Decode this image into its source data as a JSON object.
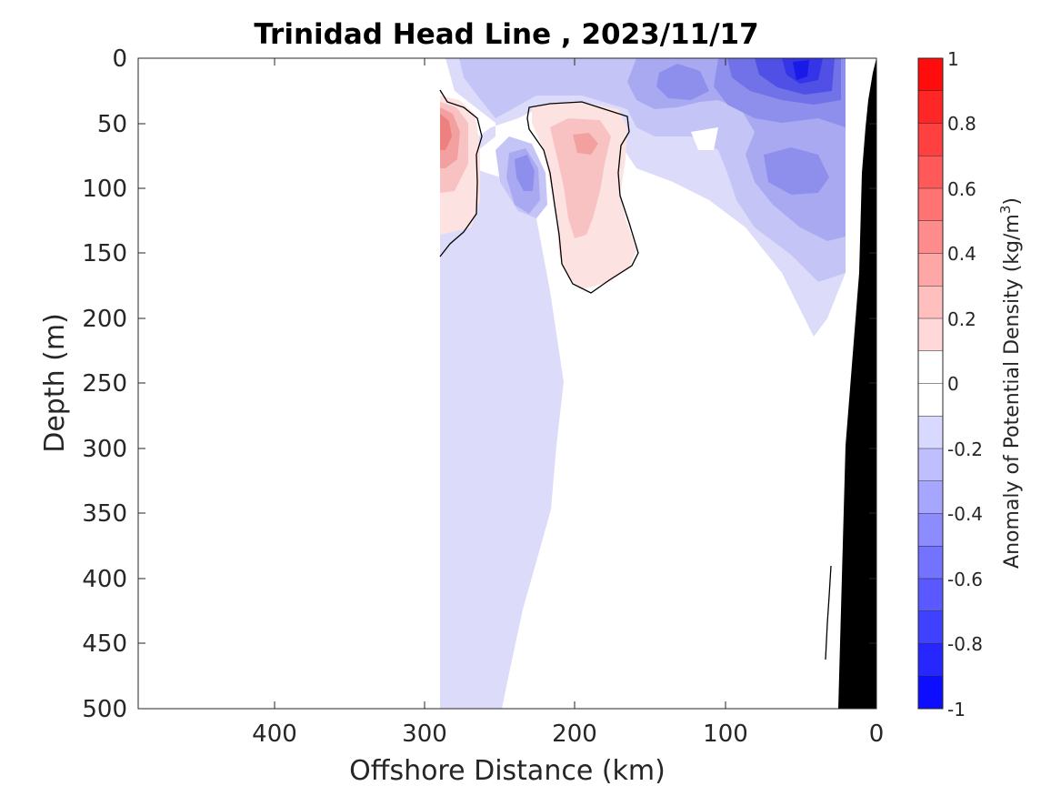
{
  "chart_data": {
    "type": "heatmap",
    "title": "Trinidad Head Line , 2023/11/17",
    "xlabel": "Offshore Distance (km)",
    "ylabel": "Depth (m)",
    "xlim": [
      490,
      0
    ],
    "ylim": [
      0,
      500
    ],
    "x_ticks": [
      "400",
      "300",
      "200",
      "100",
      "0"
    ],
    "y_ticks": [
      "0",
      "50",
      "100",
      "150",
      "200",
      "250",
      "300",
      "350",
      "400",
      "450",
      "500"
    ],
    "colorbar": {
      "label": "Anomaly of Potential Density (kg/m",
      "label_sup": "3",
      "label_close": ")",
      "range": [
        -1,
        1
      ],
      "step": 0.1,
      "ticks": [
        "1",
        "0.8",
        "0.6",
        "0.4",
        "0.2",
        "0",
        "-0.2",
        "-0.4",
        "-0.6",
        "-0.8",
        "-1"
      ]
    },
    "field_extent_km": [
      290,
      0
    ],
    "features": [
      {
        "kind": "positive",
        "name": "near 280 km",
        "depth_range_m": [
          30,
          150
        ],
        "peak_value": 0.4
      },
      {
        "kind": "positive",
        "name": "near 190 km",
        "depth_range_m": [
          35,
          180
        ],
        "peak_value": 0.3
      },
      {
        "kind": "negative",
        "name": "near 50 km surface",
        "depth_range_m": [
          0,
          60
        ],
        "peak_value": -0.8
      },
      {
        "kind": "negative",
        "name": "near 55 km subsurface",
        "depth_range_m": [
          60,
          160
        ],
        "peak_value": -0.5
      },
      {
        "kind": "negative",
        "name": "near 235 km",
        "depth_range_m": [
          60,
          120
        ],
        "peak_value": -0.4
      },
      {
        "kind": "negative",
        "name": "offshore tongue",
        "depth_range_m": [
          0,
          500
        ],
        "peak_value": -0.2
      }
    ],
    "bathymetry": {
      "color": "#000000",
      "shelf_points_km_m": [
        [
          0,
          0
        ],
        [
          10,
          90
        ],
        [
          20,
          300
        ],
        [
          25,
          500
        ]
      ]
    }
  }
}
